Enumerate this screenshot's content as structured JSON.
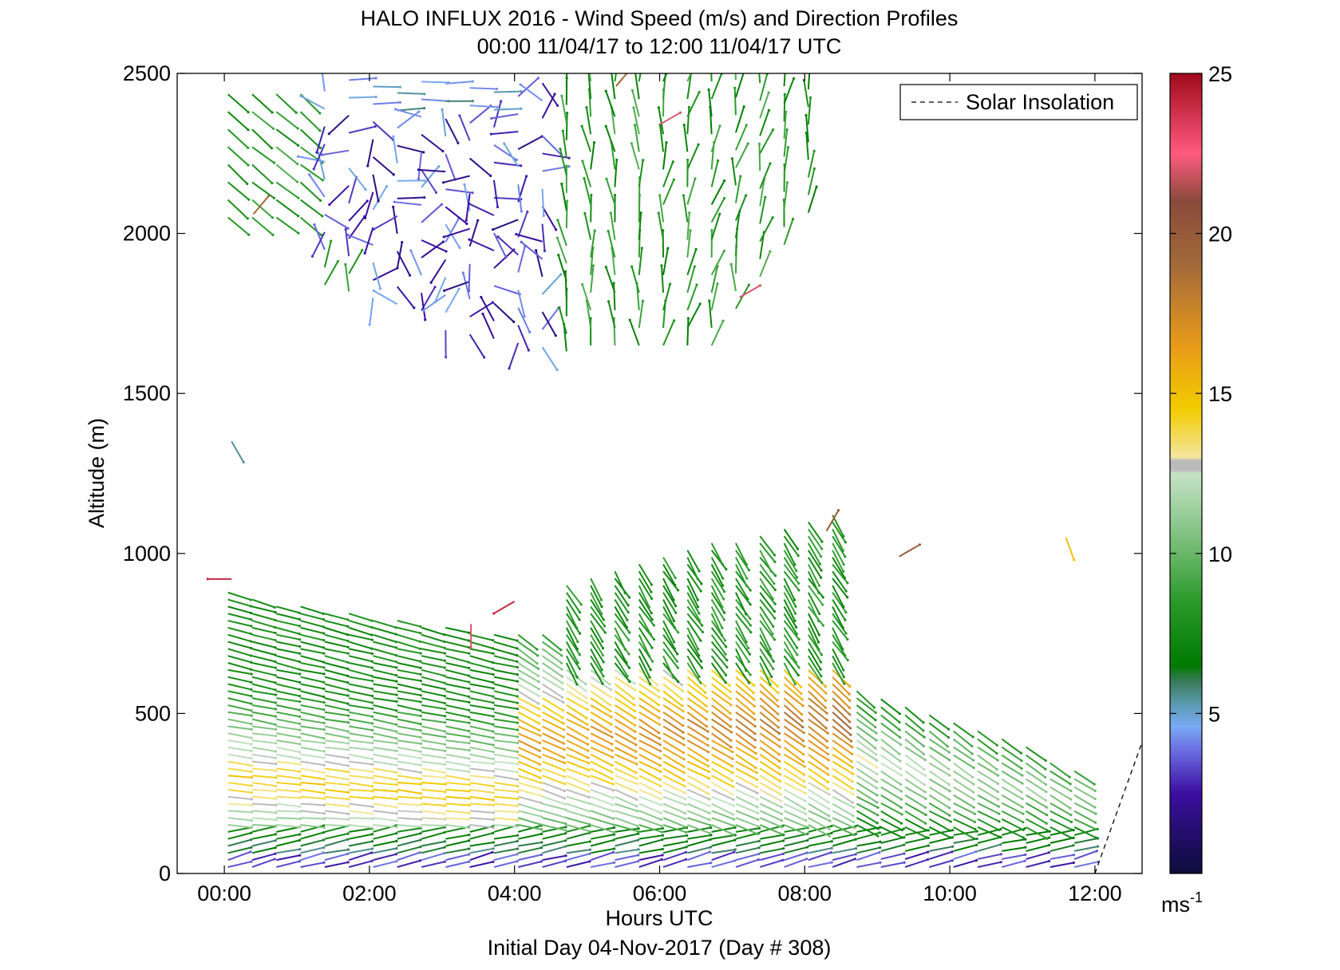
{
  "chart_data": {
    "type": "quiver",
    "title": "HALO INFLUX 2016 - Wind Speed (m/s) and Direction Profiles",
    "subtitle": "00:00 11/04/17 to 12:00 11/04/17  UTC",
    "xlabel": "Hours UTC",
    "ylabel": "Altitude (m)",
    "footer": "Initial Day 04-Nov-2017 (Day # 308)",
    "xlim": [
      -0.65,
      12.65
    ],
    "ylim": [
      0,
      2500
    ],
    "x_ticks": [
      0,
      2,
      4,
      6,
      8,
      10,
      12
    ],
    "x_tick_labels": [
      "00:00",
      "02:00",
      "04:00",
      "06:00",
      "08:00",
      "10:00",
      "12:00"
    ],
    "y_ticks": [
      0,
      500,
      1000,
      1500,
      2000,
      2500
    ],
    "y_tick_labels": [
      "0",
      "500",
      "1000",
      "1500",
      "2000",
      "2500"
    ],
    "grid": false,
    "legend": {
      "position": "top-right",
      "entries": [
        {
          "label": "Solar Insolation",
          "style": "dashed",
          "color": "#000000"
        }
      ]
    },
    "solar_insolation": {
      "x": [
        12.0,
        12.65
      ],
      "y": [
        0,
        410
      ]
    },
    "colorbar": {
      "range": [
        0,
        25
      ],
      "ticks": [
        5,
        10,
        15,
        20,
        25
      ],
      "tick_labels": [
        "5",
        "10",
        "15",
        "20",
        "25"
      ],
      "unit": "ms",
      "unit_exponent": "-1",
      "stops": [
        {
          "v": 0,
          "color": "#0d0d3a"
        },
        {
          "v": 2.5,
          "color": "#3a0ea0"
        },
        {
          "v": 3.8,
          "color": "#6a6ae0"
        },
        {
          "v": 4.6,
          "color": "#7aaaf5"
        },
        {
          "v": 5.3,
          "color": "#5a9ab0"
        },
        {
          "v": 6.0,
          "color": "#3a7a5a"
        },
        {
          "v": 6.5,
          "color": "#007a00"
        },
        {
          "v": 8.5,
          "color": "#2a9a2a"
        },
        {
          "v": 10.5,
          "color": "#7ec07e"
        },
        {
          "v": 12.5,
          "color": "#c6e3c6"
        },
        {
          "v": 12.6,
          "color": "#bbbbbb"
        },
        {
          "v": 12.9,
          "color": "#bbbbbb"
        },
        {
          "v": 13.0,
          "color": "#f4e6a0"
        },
        {
          "v": 14.5,
          "color": "#f2cc00"
        },
        {
          "v": 16.5,
          "color": "#e89a1a"
        },
        {
          "v": 19.0,
          "color": "#a36a3a"
        },
        {
          "v": 21.0,
          "color": "#8a4a3a"
        },
        {
          "v": 22.5,
          "color": "#ff5a80"
        },
        {
          "v": 25,
          "color": "#a00a1a"
        }
      ]
    },
    "regions": [
      {
        "name": "lower-layer",
        "t": [
          0,
          12
        ],
        "z": [
          20,
          860
        ],
        "speed_range": [
          2,
          17
        ]
      },
      {
        "name": "upper-layer",
        "t": [
          0,
          8.1
        ],
        "z": [
          1600,
          2500
        ],
        "speed_range": [
          2,
          11
        ]
      }
    ],
    "isolated_vectors": [
      {
        "t": 0.1,
        "z": 1350,
        "speed": 5.5,
        "dir": 300
      },
      {
        "t": 0.1,
        "z": 920,
        "speed": 24,
        "dir": 180
      },
      {
        "t": 3.4,
        "z": 780,
        "speed": 22,
        "dir": 270
      },
      {
        "t": 4.0,
        "z": 850,
        "speed": 24,
        "dir": 210
      },
      {
        "t": 8.3,
        "z": 1070,
        "speed": 20,
        "dir": 60
      },
      {
        "t": 9.3,
        "z": 990,
        "speed": 20,
        "dir": 30
      },
      {
        "t": 11.6,
        "z": 1050,
        "speed": 15,
        "dir": 290
      },
      {
        "t": 7.1,
        "z": 1800,
        "speed": 22,
        "dir": 30
      },
      {
        "t": 6.0,
        "z": 2340,
        "speed": 22,
        "dir": 30
      },
      {
        "t": 5.4,
        "z": 2460,
        "speed": 19,
        "dir": 50
      },
      {
        "t": 0.4,
        "z": 2060,
        "speed": 19,
        "dir": 50
      }
    ]
  }
}
